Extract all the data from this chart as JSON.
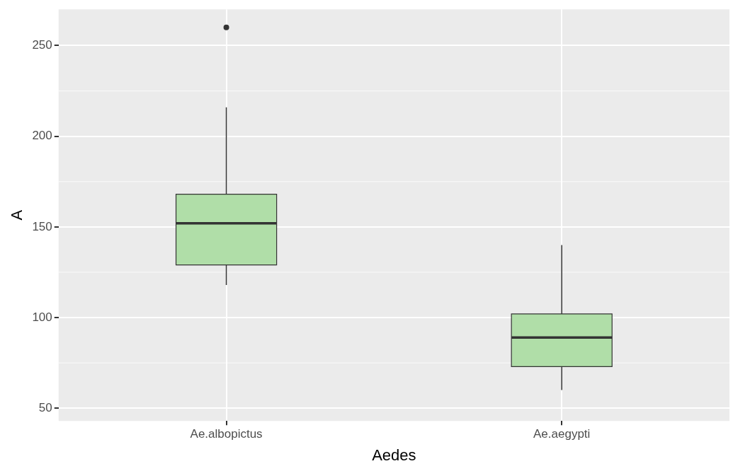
{
  "chart_data": {
    "type": "box",
    "xlabel": "Aedes",
    "ylabel": "A",
    "categories": [
      "Ae.albopictus",
      "Ae.aegypti"
    ],
    "boxes": [
      {
        "low": 118,
        "q1": 129,
        "median": 152,
        "q3": 168,
        "high": 216,
        "outliers": [
          260
        ]
      },
      {
        "low": 60,
        "q1": 73,
        "median": 89,
        "q3": 102,
        "high": 140
      }
    ],
    "color": "#b0dea8",
    "ylim": [
      43,
      270
    ],
    "yticks": [
      50,
      100,
      150,
      200,
      250
    ],
    "grid": true,
    "legend": false
  }
}
